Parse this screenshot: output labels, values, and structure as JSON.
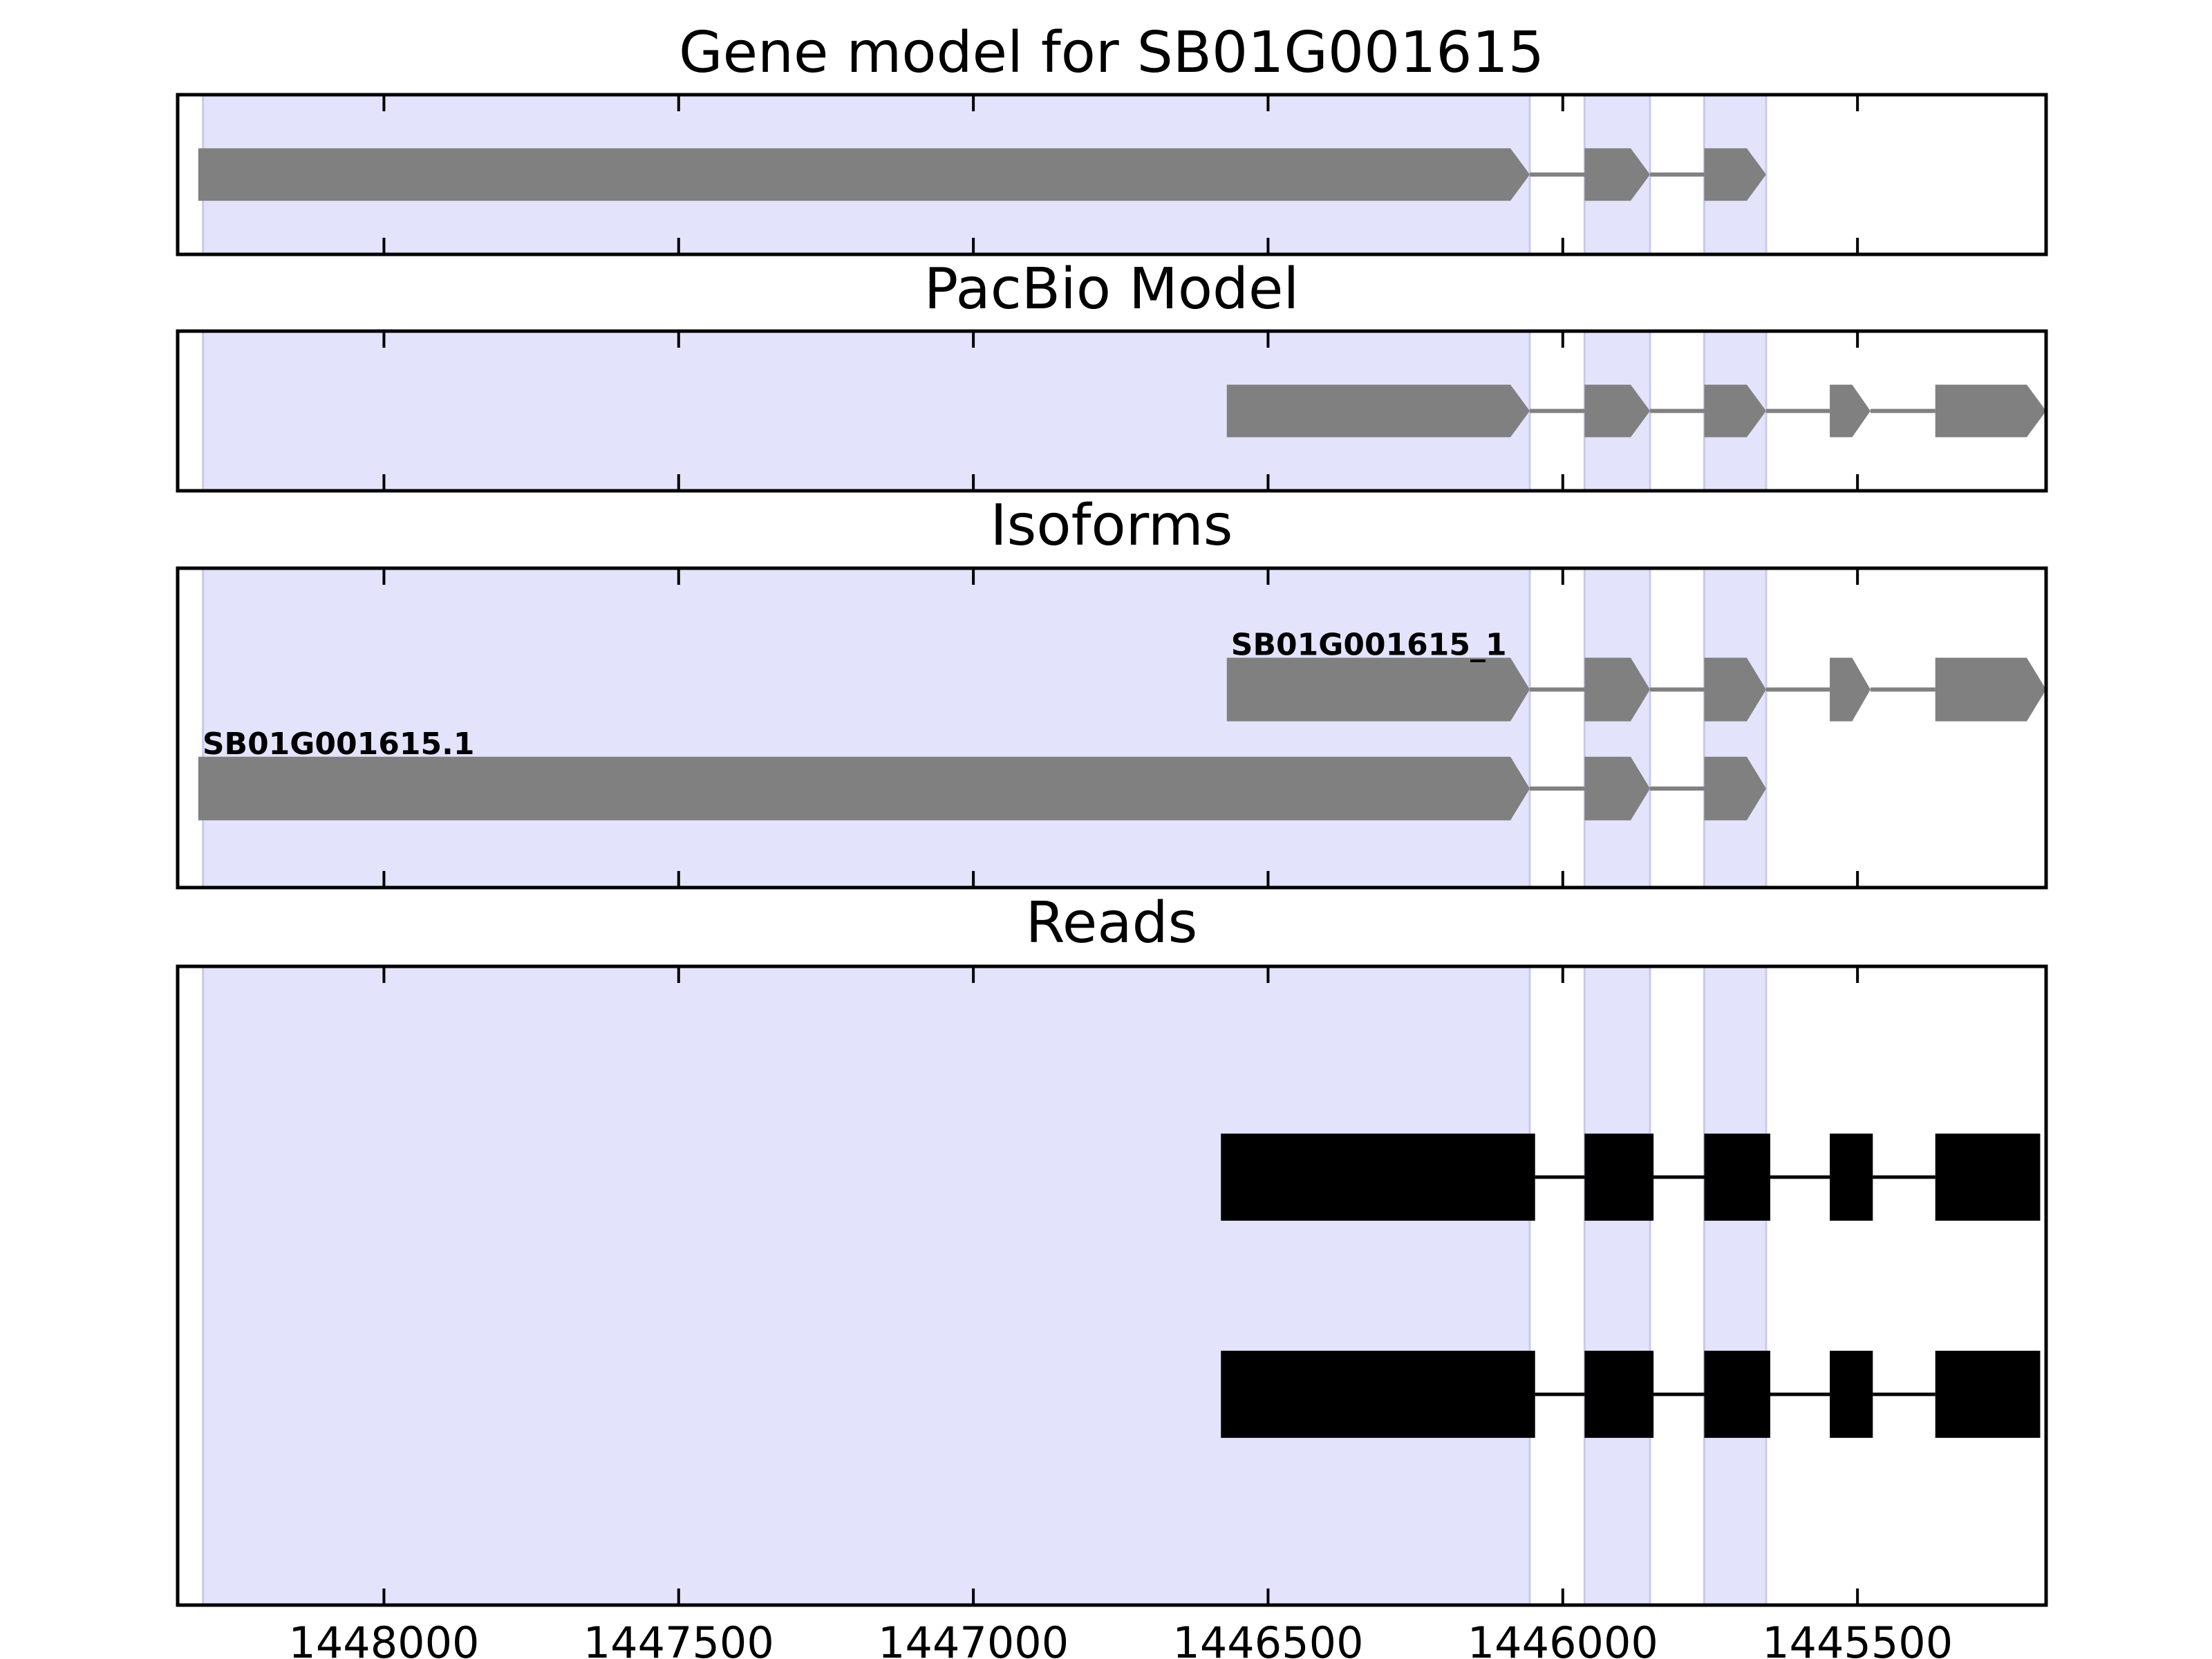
{
  "colors": {
    "exon_shading": "#e3e3fc",
    "exon_shading_edge": "#c9c9ee",
    "gene_feature": "#808080",
    "read_feature": "#000000",
    "frame": "#000000",
    "background": "#ffffff"
  },
  "chart_data": {
    "type": "gene-track",
    "strand": "minus",
    "x_axis": {
      "reversed": true,
      "xlim": [
        1448350,
        1445180
      ],
      "ticks": [
        1448000,
        1447500,
        1447000,
        1446500,
        1446000,
        1445500
      ],
      "tick_labels": [
        "1448000",
        "1447500",
        "1447000",
        "1446500",
        "1446000",
        "1445500"
      ]
    },
    "shaded_exons": [
      [
        1448307,
        1446056
      ],
      [
        1445963,
        1445852
      ],
      [
        1445760,
        1445655
      ]
    ],
    "panels": [
      {
        "title": "Gene model for SB01G001615",
        "tracks": [
          {
            "label": "",
            "row": 0.5,
            "exons": [
              [
                1448315,
                1446056
              ],
              [
                1445963,
                1445852
              ],
              [
                1445760,
                1445655
              ]
            ]
          }
        ]
      },
      {
        "title": "PacBio Model",
        "tracks": [
          {
            "label": "",
            "row": 0.5,
            "exons": [
              [
                1446570,
                1446056
              ],
              [
                1445963,
                1445852
              ],
              [
                1445760,
                1445655
              ],
              [
                1445547,
                1445478
              ],
              [
                1445368,
                1445180
              ]
            ]
          }
        ]
      },
      {
        "title": "Isoforms",
        "tracks": [
          {
            "label": "SB01G001615_1",
            "row": 0.62,
            "exons": [
              [
                1446570,
                1446056
              ],
              [
                1445963,
                1445852
              ],
              [
                1445760,
                1445655
              ],
              [
                1445547,
                1445478
              ],
              [
                1445368,
                1445180
              ]
            ]
          },
          {
            "label": "SB01G001615.1",
            "row": 0.31,
            "exons": [
              [
                1448315,
                1446056
              ],
              [
                1445963,
                1445852
              ],
              [
                1445760,
                1445655
              ]
            ]
          }
        ]
      },
      {
        "title": "Reads",
        "tracks": [
          {
            "label": "",
            "row": 0.67,
            "exons": [
              [
                1446580,
                1446047
              ],
              [
                1445963,
                1445846
              ],
              [
                1445760,
                1445648
              ],
              [
                1445547,
                1445474
              ],
              [
                1445368,
                1445190
              ]
            ]
          },
          {
            "label": "",
            "row": 0.33,
            "exons": [
              [
                1446580,
                1446047
              ],
              [
                1445963,
                1445846
              ],
              [
                1445760,
                1445648
              ],
              [
                1445547,
                1445474
              ],
              [
                1445368,
                1445190
              ]
            ]
          }
        ]
      }
    ]
  }
}
